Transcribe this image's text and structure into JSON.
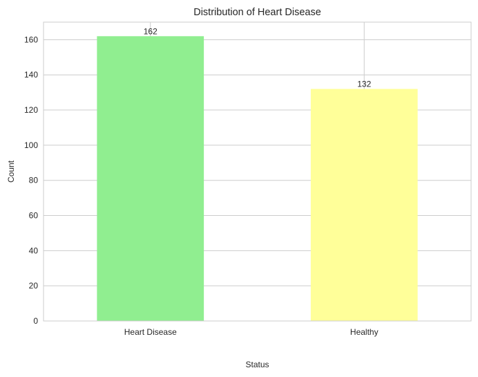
{
  "chart_data": {
    "type": "bar",
    "title": "Distribution of Heart Disease",
    "xlabel": "Status",
    "ylabel": "Count",
    "categories": [
      "Heart Disease",
      "Healthy"
    ],
    "values": [
      162,
      132
    ],
    "data_labels": [
      "162",
      "132"
    ],
    "colors": [
      "#90ee90",
      "#ffff99"
    ],
    "ylim": [
      0,
      170
    ],
    "yticks": [
      0,
      20,
      40,
      60,
      80,
      100,
      120,
      140,
      160
    ],
    "grid": true,
    "legend": false
  }
}
